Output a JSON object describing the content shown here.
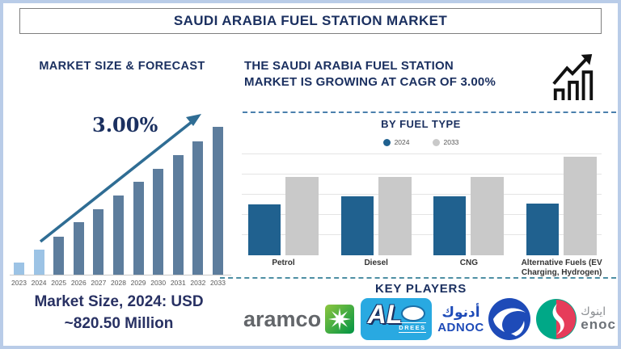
{
  "palette": {
    "navy_text": "#1b3060",
    "frame_border": "#b9cce8",
    "arrow_blue": "#2f6d94",
    "left_bar_highlight": "#9cc3e5",
    "left_bar_normal": "#5d7d9d",
    "fuel_bar_2024": "#20618f",
    "fuel_bar_2033": "#c9c9c9",
    "dashed_line_top": "#4b80ad",
    "dashed_line_bottom": "#4e8fa4",
    "aramco_gray": "#63666a",
    "aramco_green": "#009444",
    "aldrees_blue": "#29a9e1",
    "adnoc_blue": "#1e4bb8",
    "enoc_green": "#00a887",
    "enoc_red": "#e63c5a"
  },
  "title": "SAUDI ARABIA FUEL STATION MARKET",
  "left_panel": {
    "heading": "MARKET SIZE & FORECAST",
    "cagr_annotation": "3.00%",
    "footer_line1": "Market Size, 2024: USD",
    "footer_line2": "~820.50 Million"
  },
  "right_panel": {
    "headline_line1": "THE SAUDI ARABIA FUEL STATION",
    "headline_line2": "MARKET IS GROWING AT CAGR OF 3.00%",
    "growth_icon": "bar-chart-rising-arrow-icon",
    "fuel_section_heading": "BY FUEL TYPE",
    "key_players_heading": "KEY PLAYERS",
    "players": [
      {
        "name": "aramco",
        "wordmark": "aramco"
      },
      {
        "name": "Aldrees",
        "wordmark_main": "AL",
        "wordmark_sub": "DREES"
      },
      {
        "name": "ADNOC",
        "wordmark_arabic": "أدنوك",
        "wordmark": "ADNOC"
      },
      {
        "name": "ENOC",
        "wordmark_arabic": "اينوك",
        "wordmark": "enoc"
      }
    ]
  },
  "chart_data": [
    {
      "type": "bar",
      "title": "MARKET SIZE & FORECAST",
      "categories": [
        "2023",
        "2024",
        "2025",
        "2026",
        "2027",
        "2028",
        "2029",
        "2030",
        "2031",
        "2032",
        "2033"
      ],
      "values": [
        15,
        31,
        47,
        65,
        81,
        98,
        115,
        131,
        148,
        165,
        183
      ],
      "units": "stylized relative height, no y-axis shown",
      "annotation": "3.00% CAGR growth arrow",
      "known_point": "Market Size 2024: USD ~820.50 Million",
      "point_colors": [
        "#9cc3e5",
        "#9cc3e5",
        "#5d7d9d",
        "#5d7d9d",
        "#5d7d9d",
        "#5d7d9d",
        "#5d7d9d",
        "#5d7d9d",
        "#5d7d9d",
        "#5d7d9d",
        "#5d7d9d"
      ],
      "grid": "off",
      "legend_position": "none"
    },
    {
      "type": "bar",
      "title": "BY FUEL TYPE",
      "categories": [
        "Petrol",
        "Diesel",
        "CNG",
        "Alternative Fuels (EV Charging, Hydrogen)"
      ],
      "series": [
        {
          "name": "2024",
          "color": "#20618f",
          "values": [
            63,
            73,
            73,
            64
          ]
        },
        {
          "name": "2033",
          "color": "#c9c9c9",
          "values": [
            97,
            97,
            97,
            122
          ]
        }
      ],
      "units": "stylized relative height, no y-axis shown",
      "grid": "horizontal",
      "legend_position": "top-center"
    }
  ]
}
